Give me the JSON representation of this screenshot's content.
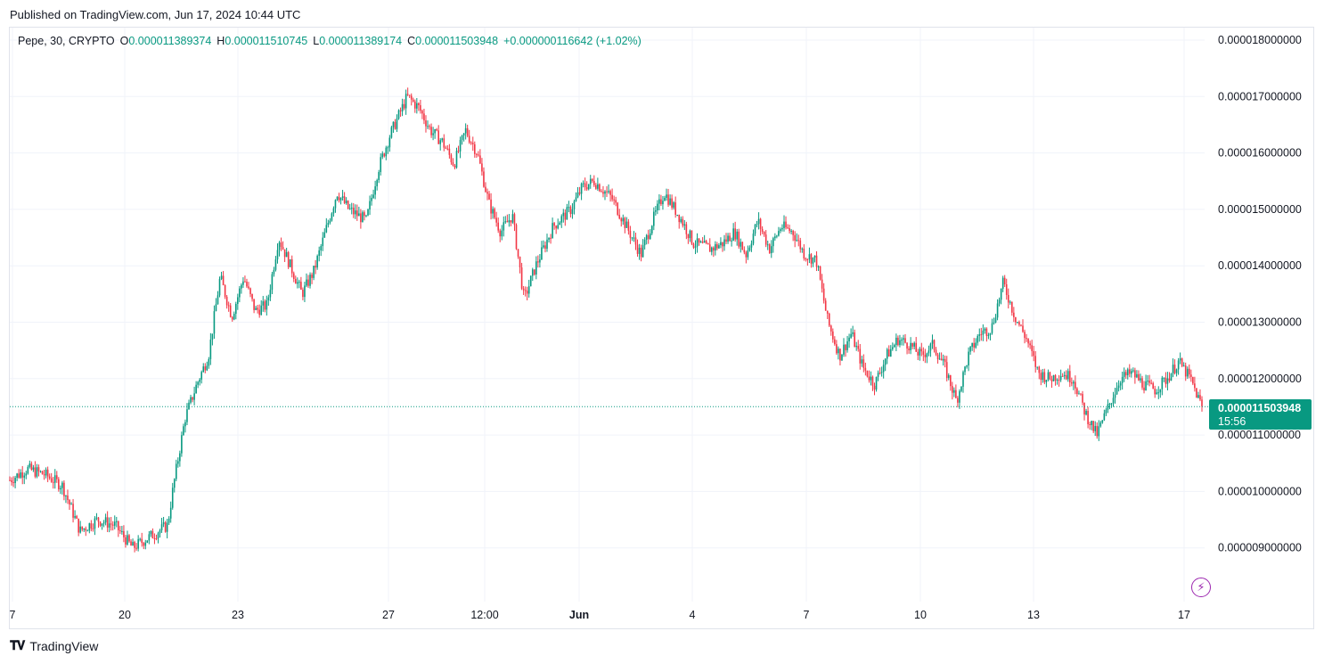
{
  "header": {
    "published": "Published on TradingView.com, Jun 17, 2024 10:44 UTC"
  },
  "legend": {
    "symbol": "Pepe, 30, CRYPTO",
    "o_label": "O",
    "o_value": "0.000011389374",
    "h_label": "H",
    "h_value": "0.000011510745",
    "l_label": "L",
    "l_value": "0.000011389174",
    "c_label": "C",
    "c_value": "0.000011503948",
    "change": "+0.000000116642 (+1.02%)"
  },
  "price_tag": {
    "price": "0.000011503948",
    "countdown": "15:56"
  },
  "footer": {
    "brand": "TradingView"
  },
  "colors": {
    "up": "#089981",
    "down": "#f23645",
    "grid": "#f0f3fa",
    "accent": "#9c27b0"
  },
  "icons": {
    "alert": "lightning-icon",
    "brand": "tradingview-logo-icon"
  },
  "chart_data": {
    "type": "candlestick",
    "interval": "30",
    "y_axis": {
      "tick_labels": [
        "0.000018000000",
        "0.000017000000",
        "0.000016000000",
        "0.000015000000",
        "0.000014000000",
        "0.000013000000",
        "0.000012000000",
        "0.000011000000",
        "0.000010000000",
        "0.000009000000"
      ],
      "range": [
        8.2e-06,
        1.85e-05
      ]
    },
    "x_axis": {
      "tick_labels": [
        "7",
        "20",
        "23",
        "27",
        "12:00",
        "Jun",
        "4",
        "7",
        "10",
        "13",
        "17"
      ]
    },
    "last_price": 1.1503948e-05,
    "price_path": [
      [
        0,
        1.02e-05
      ],
      [
        3,
        1.04e-05
      ],
      [
        6,
        1.03e-05
      ],
      [
        9,
        1.01e-05
      ],
      [
        12,
        9.3e-06
      ],
      [
        15,
        9.5e-06
      ],
      [
        18,
        9.4e-06
      ],
      [
        21,
        9e-06
      ],
      [
        24,
        9.2e-06
      ],
      [
        27,
        9.4e-06
      ],
      [
        28,
        1.01e-05
      ],
      [
        30,
        1.13e-05
      ],
      [
        32,
        1.19e-05
      ],
      [
        34,
        1.24e-05
      ],
      [
        36,
        1.38e-05
      ],
      [
        38,
        1.31e-05
      ],
      [
        40,
        1.38e-05
      ],
      [
        42,
        1.32e-05
      ],
      [
        44,
        1.33e-05
      ],
      [
        46,
        1.45e-05
      ],
      [
        48,
        1.4e-05
      ],
      [
        50,
        1.35e-05
      ],
      [
        52,
        1.39e-05
      ],
      [
        54,
        1.46e-05
      ],
      [
        56,
        1.53e-05
      ],
      [
        58,
        1.5e-05
      ],
      [
        61,
        1.48e-05
      ],
      [
        63,
        1.57e-05
      ],
      [
        65,
        1.63e-05
      ],
      [
        68,
        1.7e-05
      ],
      [
        70,
        1.68e-05
      ],
      [
        72,
        1.64e-05
      ],
      [
        74,
        1.62e-05
      ],
      [
        76,
        1.58e-05
      ],
      [
        78,
        1.64e-05
      ],
      [
        80,
        1.6e-05
      ],
      [
        82,
        1.51e-05
      ],
      [
        84,
        1.46e-05
      ],
      [
        86,
        1.49e-05
      ],
      [
        88,
        1.34e-05
      ],
      [
        90,
        1.4e-05
      ],
      [
        93,
        1.47e-05
      ],
      [
        96,
        1.5e-05
      ],
      [
        98,
        1.54e-05
      ],
      [
        100,
        1.55e-05
      ],
      [
        103,
        1.52e-05
      ],
      [
        106,
        1.46e-05
      ],
      [
        108,
        1.42e-05
      ],
      [
        110,
        1.48e-05
      ],
      [
        112,
        1.53e-05
      ],
      [
        115,
        1.48e-05
      ],
      [
        117,
        1.44e-05
      ],
      [
        120,
        1.43e-05
      ],
      [
        122,
        1.44e-05
      ],
      [
        124,
        1.46e-05
      ],
      [
        126,
        1.42e-05
      ],
      [
        128,
        1.48e-05
      ],
      [
        130,
        1.43e-05
      ],
      [
        132,
        1.47e-05
      ],
      [
        134,
        1.46e-05
      ],
      [
        136,
        1.42e-05
      ],
      [
        138,
        1.41e-05
      ],
      [
        140,
        1.3e-05
      ],
      [
        142,
        1.24e-05
      ],
      [
        144,
        1.28e-05
      ],
      [
        146,
        1.22e-05
      ],
      [
        148,
        1.19e-05
      ],
      [
        150,
        1.24e-05
      ],
      [
        152,
        1.27e-05
      ],
      [
        154,
        1.26e-05
      ],
      [
        156,
        1.24e-05
      ],
      [
        158,
        1.26e-05
      ],
      [
        160,
        1.22e-05
      ],
      [
        162,
        1.16e-05
      ],
      [
        164,
        1.24e-05
      ],
      [
        166,
        1.28e-05
      ],
      [
        168,
        1.29e-05
      ],
      [
        170,
        1.37e-05
      ],
      [
        172,
        1.31e-05
      ],
      [
        174,
        1.27e-05
      ],
      [
        176,
        1.21e-05
      ],
      [
        178,
        1.2e-05
      ],
      [
        180,
        1.21e-05
      ],
      [
        182,
        1.2e-05
      ],
      [
        184,
        1.14e-05
      ],
      [
        186,
        1.1e-05
      ],
      [
        188,
        1.15e-05
      ],
      [
        190,
        1.2e-05
      ],
      [
        192,
        1.21e-05
      ],
      [
        194,
        1.19e-05
      ],
      [
        196,
        1.18e-05
      ],
      [
        198,
        1.2e-05
      ],
      [
        200,
        1.23e-05
      ],
      [
        202,
        1.2e-05
      ],
      [
        204,
        1.15e-05
      ]
    ]
  }
}
